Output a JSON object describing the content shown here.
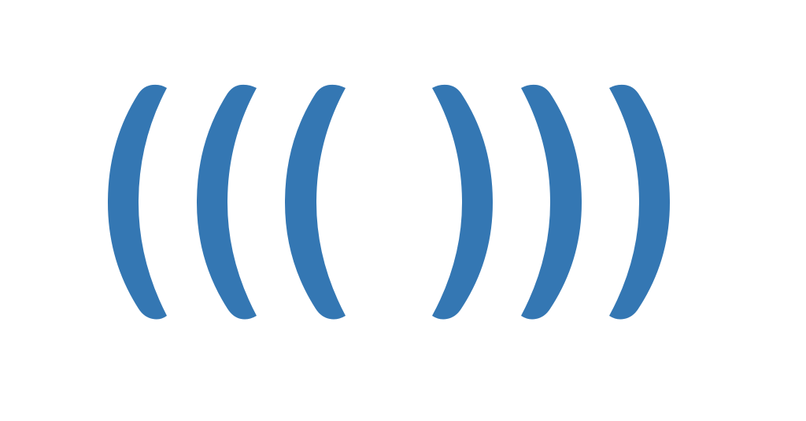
{
  "graphic": {
    "name": "wireless-signal-brackets",
    "icon": "signal-waves-icon",
    "color": "#3477b3",
    "background": "#ffffff",
    "arc_count_left": 3,
    "arc_count_right": 3
  }
}
